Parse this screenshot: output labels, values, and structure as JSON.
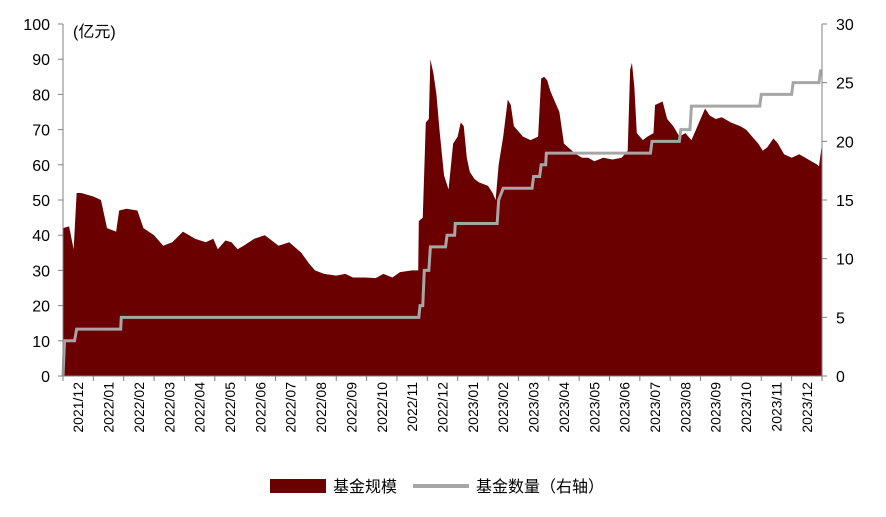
{
  "chart_data": {
    "type": "area",
    "unit_label": "(亿元)",
    "x_ticks": [
      "2021/12",
      "2022/01",
      "2022/02",
      "2022/03",
      "2022/04",
      "2022/05",
      "2022/06",
      "2022/07",
      "2022/08",
      "2022/09",
      "2022/10",
      "2022/11",
      "2022/12",
      "2023/01",
      "2023/02",
      "2023/03",
      "2023/04",
      "2023/05",
      "2023/06",
      "2023/07",
      "2023/08",
      "2023/09",
      "2023/10",
      "2023/11",
      "2023/12"
    ],
    "y_left": {
      "min": 0,
      "max": 100,
      "ticks": [
        0,
        10,
        20,
        30,
        40,
        50,
        60,
        70,
        80,
        90,
        100
      ]
    },
    "y_right": {
      "min": 0,
      "max": 30,
      "ticks": [
        0,
        5,
        10,
        15,
        20,
        25,
        30
      ]
    },
    "colors": {
      "area": "#6b0000",
      "line": "#a6a6a6",
      "axis": "#808080"
    },
    "series": [
      {
        "name": "基金规模",
        "axis": "left",
        "kind": "area",
        "points": [
          [
            0.0,
            42
          ],
          [
            0.2,
            42.5
          ],
          [
            0.35,
            36
          ],
          [
            0.45,
            52
          ],
          [
            0.6,
            52
          ],
          [
            1.0,
            51
          ],
          [
            1.25,
            50
          ],
          [
            1.45,
            42
          ],
          [
            1.75,
            41
          ],
          [
            1.85,
            47
          ],
          [
            2.1,
            47.5
          ],
          [
            2.45,
            47
          ],
          [
            2.65,
            42
          ],
          [
            3.0,
            40
          ],
          [
            3.3,
            37
          ],
          [
            3.6,
            38
          ],
          [
            3.95,
            41
          ],
          [
            4.35,
            39
          ],
          [
            4.7,
            38
          ],
          [
            4.95,
            39
          ],
          [
            5.1,
            36
          ],
          [
            5.35,
            38.5
          ],
          [
            5.55,
            38
          ],
          [
            5.75,
            36
          ],
          [
            5.95,
            37
          ],
          [
            6.3,
            39
          ],
          [
            6.65,
            40
          ],
          [
            6.95,
            38
          ],
          [
            7.1,
            37
          ],
          [
            7.45,
            38
          ],
          [
            7.85,
            35
          ],
          [
            8.1,
            32
          ],
          [
            8.3,
            30
          ],
          [
            8.6,
            29
          ],
          [
            9.0,
            28.5
          ],
          [
            9.3,
            29
          ],
          [
            9.55,
            28
          ],
          [
            9.95,
            28
          ],
          [
            10.3,
            27.8
          ],
          [
            10.55,
            29
          ],
          [
            10.85,
            28
          ],
          [
            11.1,
            29.5
          ],
          [
            11.5,
            30
          ],
          [
            11.7,
            30
          ],
          [
            11.72,
            44
          ],
          [
            11.85,
            45
          ],
          [
            11.95,
            72
          ],
          [
            12.05,
            73
          ],
          [
            12.1,
            90
          ],
          [
            12.2,
            86
          ],
          [
            12.3,
            80
          ],
          [
            12.4,
            70
          ],
          [
            12.55,
            57
          ],
          [
            12.7,
            53
          ],
          [
            12.85,
            66
          ],
          [
            13.0,
            68
          ],
          [
            13.1,
            72
          ],
          [
            13.2,
            71
          ],
          [
            13.3,
            62
          ],
          [
            13.4,
            58
          ],
          [
            13.55,
            56
          ],
          [
            13.7,
            55
          ],
          [
            14.0,
            54
          ],
          [
            14.15,
            52
          ],
          [
            14.25,
            50
          ],
          [
            14.35,
            60
          ],
          [
            14.5,
            68
          ],
          [
            14.65,
            78.5
          ],
          [
            14.75,
            77
          ],
          [
            14.85,
            71
          ],
          [
            15.15,
            68
          ],
          [
            15.4,
            67
          ],
          [
            15.65,
            68
          ],
          [
            15.75,
            84.5
          ],
          [
            15.85,
            85
          ],
          [
            15.95,
            84
          ],
          [
            16.05,
            81
          ],
          [
            16.2,
            78
          ],
          [
            16.35,
            75
          ],
          [
            16.5,
            66
          ],
          [
            16.7,
            64.5
          ],
          [
            16.9,
            63
          ],
          [
            17.1,
            62
          ],
          [
            17.3,
            62
          ],
          [
            17.5,
            61
          ],
          [
            17.8,
            62
          ],
          [
            18.1,
            61.5
          ],
          [
            18.4,
            62
          ],
          [
            18.6,
            64
          ],
          [
            18.68,
            87
          ],
          [
            18.74,
            89
          ],
          [
            18.82,
            82
          ],
          [
            18.9,
            69
          ],
          [
            19.1,
            67
          ],
          [
            19.25,
            68
          ],
          [
            19.45,
            69
          ],
          [
            19.5,
            77
          ],
          [
            19.75,
            78
          ],
          [
            19.9,
            73
          ],
          [
            20.1,
            71
          ],
          [
            20.3,
            68
          ],
          [
            20.5,
            69
          ],
          [
            20.7,
            67
          ],
          [
            20.85,
            70
          ],
          [
            21.0,
            73
          ],
          [
            21.15,
            76
          ],
          [
            21.3,
            74
          ],
          [
            21.5,
            73
          ],
          [
            21.7,
            73.5
          ],
          [
            22.0,
            72
          ],
          [
            22.3,
            71
          ],
          [
            22.5,
            70
          ],
          [
            22.7,
            68
          ],
          [
            22.9,
            66
          ],
          [
            23.05,
            64
          ],
          [
            23.2,
            65
          ],
          [
            23.4,
            67.5
          ],
          [
            23.55,
            66
          ],
          [
            23.75,
            63
          ],
          [
            24.0,
            62
          ],
          [
            24.25,
            63
          ],
          [
            24.45,
            62
          ],
          [
            24.65,
            61
          ],
          [
            24.85,
            60
          ],
          [
            24.9,
            59.5
          ],
          [
            25.0,
            66
          ]
        ]
      },
      {
        "name": "基金数量（右轴）",
        "axis": "right",
        "kind": "step",
        "points": [
          [
            0.0,
            0
          ],
          [
            0.05,
            3
          ],
          [
            0.38,
            3
          ],
          [
            0.45,
            4
          ],
          [
            1.9,
            4
          ],
          [
            1.92,
            5
          ],
          [
            11.72,
            5
          ],
          [
            11.76,
            6
          ],
          [
            11.85,
            6
          ],
          [
            11.9,
            9
          ],
          [
            12.05,
            9
          ],
          [
            12.1,
            11
          ],
          [
            12.6,
            11
          ],
          [
            12.65,
            12
          ],
          [
            12.9,
            12
          ],
          [
            12.92,
            13
          ],
          [
            14.3,
            13
          ],
          [
            14.35,
            15
          ],
          [
            14.5,
            16
          ],
          [
            15.45,
            16
          ],
          [
            15.5,
            17
          ],
          [
            15.7,
            17
          ],
          [
            15.75,
            18
          ],
          [
            15.9,
            18
          ],
          [
            15.92,
            19
          ],
          [
            19.35,
            19
          ],
          [
            19.4,
            20
          ],
          [
            20.3,
            20
          ],
          [
            20.35,
            21
          ],
          [
            20.65,
            21
          ],
          [
            20.7,
            23
          ],
          [
            22.95,
            23
          ],
          [
            23.0,
            24
          ],
          [
            24.0,
            24
          ],
          [
            24.05,
            25
          ],
          [
            24.9,
            25
          ],
          [
            24.95,
            26
          ],
          [
            25.0,
            26
          ]
        ]
      }
    ],
    "legend_position": "bottom-center"
  }
}
